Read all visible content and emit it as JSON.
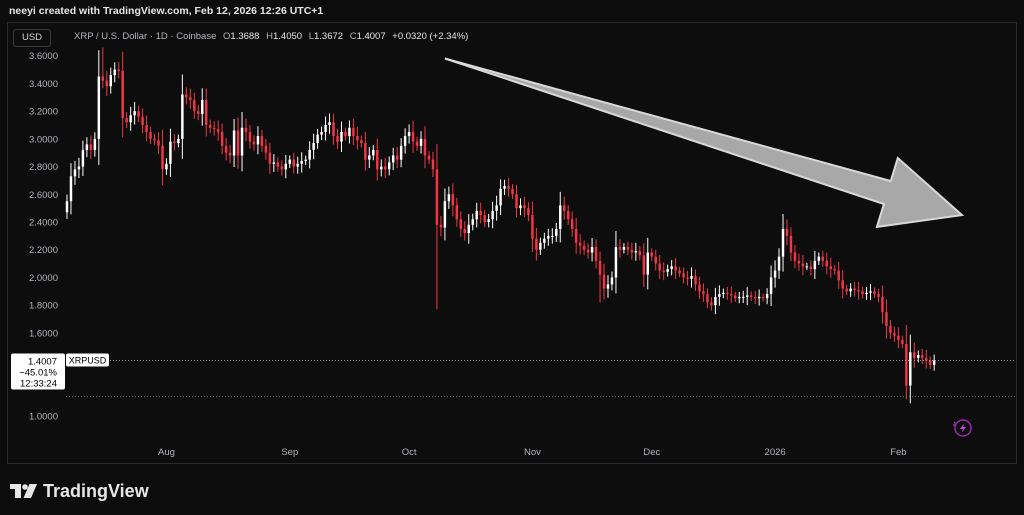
{
  "header": {
    "credit": "neeyi created with TradingView.com, Feb 12, 2026 12:26 UTC+1",
    "currency_button": "USD",
    "symbol": "XRP / U.S. Dollar · 1D · Coinbase",
    "ohlc": {
      "o_label": "O",
      "o": "1.3688",
      "h_label": "H",
      "h": "1.4050",
      "l_label": "L",
      "l": "1.3672",
      "c_label": "C",
      "c": "1.4007",
      "change": "+0.0320 (+2.34%)"
    }
  },
  "price_marker": {
    "price": "1.4007",
    "change_pct": "−45.01%",
    "countdown": "12:33:24",
    "symbol_tag": "XRPUSD"
  },
  "colors": {
    "up": "#ffffff",
    "down": "#f23645",
    "background": "#0d0d0d",
    "arrow": "#b5b5b5",
    "lightning": "#9c27b0"
  },
  "icons": {
    "lightning": "lightning-icon",
    "logo": "tradingview-logo-icon"
  },
  "watermark": "TradingView",
  "chart_data": {
    "type": "candlestick",
    "title": "XRP / U.S. Dollar · 1D · Coinbase",
    "y_ticks": [
      1.0,
      1.6,
      1.8,
      2.0,
      2.2,
      2.4,
      2.6,
      2.8,
      3.0,
      3.2,
      3.4,
      3.6
    ],
    "y_range": [
      0.95,
      3.67
    ],
    "x_ticks": [
      "Aug",
      "Sep",
      "Oct",
      "Nov",
      "Dec",
      "2026",
      "Feb"
    ],
    "x_range": [
      "2025-07-09",
      "2026-02-20"
    ],
    "grid": false,
    "last_price": 1.4007,
    "dotted_level": 1.14,
    "annotation": {
      "type": "arrow",
      "from": [
        "2025-10-12",
        3.58
      ],
      "to": [
        "2026-02-19",
        2.45
      ]
    },
    "closes": [
      {
        "d": "2025-07-09",
        "c": 2.55
      },
      {
        "d": "2025-07-10",
        "c": 2.73
      },
      {
        "d": "2025-07-11",
        "c": 2.78
      },
      {
        "d": "2025-07-12",
        "c": 2.8
      },
      {
        "d": "2025-07-13",
        "c": 2.92
      },
      {
        "d": "2025-07-14",
        "c": 2.96
      },
      {
        "d": "2025-07-15",
        "c": 2.92
      },
      {
        "d": "2025-07-16",
        "c": 3.0
      },
      {
        "d": "2025-07-17",
        "c": 3.45
      },
      {
        "d": "2025-07-18",
        "c": 3.42
      },
      {
        "d": "2025-07-19",
        "c": 3.38
      },
      {
        "d": "2025-07-20",
        "c": 3.46
      },
      {
        "d": "2025-07-21",
        "c": 3.5
      },
      {
        "d": "2025-07-22",
        "c": 3.49
      },
      {
        "d": "2025-07-23",
        "c": 3.15
      },
      {
        "d": "2025-07-24",
        "c": 3.12
      },
      {
        "d": "2025-07-25",
        "c": 3.17
      },
      {
        "d": "2025-07-26",
        "c": 3.2
      },
      {
        "d": "2025-07-27",
        "c": 3.16
      },
      {
        "d": "2025-07-28",
        "c": 3.1
      },
      {
        "d": "2025-07-29",
        "c": 3.05
      },
      {
        "d": "2025-07-30",
        "c": 3.0
      },
      {
        "d": "2025-07-31",
        "c": 2.99
      },
      {
        "d": "2025-08-01",
        "c": 2.95
      },
      {
        "d": "2025-08-02",
        "c": 2.78
      },
      {
        "d": "2025-08-03",
        "c": 2.82
      },
      {
        "d": "2025-08-04",
        "c": 2.98
      },
      {
        "d": "2025-08-05",
        "c": 2.97
      },
      {
        "d": "2025-08-06",
        "c": 3.0
      },
      {
        "d": "2025-08-07",
        "c": 3.32
      },
      {
        "d": "2025-08-08",
        "c": 3.3
      },
      {
        "d": "2025-08-09",
        "c": 3.28
      },
      {
        "d": "2025-08-10",
        "c": 3.2
      },
      {
        "d": "2025-08-11",
        "c": 3.18
      },
      {
        "d": "2025-08-12",
        "c": 3.28
      },
      {
        "d": "2025-08-13",
        "c": 3.1
      },
      {
        "d": "2025-08-14",
        "c": 3.08
      },
      {
        "d": "2025-08-15",
        "c": 3.07
      },
      {
        "d": "2025-08-16",
        "c": 3.05
      },
      {
        "d": "2025-08-17",
        "c": 2.95
      },
      {
        "d": "2025-08-18",
        "c": 2.9
      },
      {
        "d": "2025-08-19",
        "c": 2.88
      },
      {
        "d": "2025-08-20",
        "c": 3.06
      },
      {
        "d": "2025-08-21",
        "c": 2.88
      },
      {
        "d": "2025-08-22",
        "c": 3.08
      },
      {
        "d": "2025-08-23",
        "c": 3.05
      },
      {
        "d": "2025-08-24",
        "c": 2.98
      },
      {
        "d": "2025-08-25",
        "c": 2.96
      },
      {
        "d": "2025-08-26",
        "c": 3.02
      },
      {
        "d": "2025-08-27",
        "c": 2.95
      },
      {
        "d": "2025-08-28",
        "c": 2.9
      },
      {
        "d": "2025-08-29",
        "c": 2.82
      },
      {
        "d": "2025-08-30",
        "c": 2.83
      },
      {
        "d": "2025-08-31",
        "c": 2.8
      },
      {
        "d": "2025-09-01",
        "c": 2.78
      },
      {
        "d": "2025-09-02",
        "c": 2.82
      },
      {
        "d": "2025-09-03",
        "c": 2.85
      },
      {
        "d": "2025-09-04",
        "c": 2.8
      },
      {
        "d": "2025-09-05",
        "c": 2.82
      },
      {
        "d": "2025-09-06",
        "c": 2.84
      },
      {
        "d": "2025-09-07",
        "c": 2.85
      },
      {
        "d": "2025-09-08",
        "c": 2.92
      },
      {
        "d": "2025-09-09",
        "c": 2.97
      },
      {
        "d": "2025-09-10",
        "c": 3.03
      },
      {
        "d": "2025-09-11",
        "c": 3.05
      },
      {
        "d": "2025-09-12",
        "c": 3.1
      },
      {
        "d": "2025-09-13",
        "c": 3.12
      },
      {
        "d": "2025-09-14",
        "c": 3.02
      },
      {
        "d": "2025-09-15",
        "c": 2.98
      },
      {
        "d": "2025-09-16",
        "c": 3.05
      },
      {
        "d": "2025-09-17",
        "c": 3.02
      },
      {
        "d": "2025-09-18",
        "c": 3.08
      },
      {
        "d": "2025-09-19",
        "c": 3.02
      },
      {
        "d": "2025-09-20",
        "c": 2.99
      },
      {
        "d": "2025-09-21",
        "c": 2.97
      },
      {
        "d": "2025-09-22",
        "c": 2.85
      },
      {
        "d": "2025-09-23",
        "c": 2.88
      },
      {
        "d": "2025-09-24",
        "c": 2.92
      },
      {
        "d": "2025-09-25",
        "c": 2.78
      },
      {
        "d": "2025-09-26",
        "c": 2.8
      },
      {
        "d": "2025-09-27",
        "c": 2.78
      },
      {
        "d": "2025-09-28",
        "c": 2.83
      },
      {
        "d": "2025-09-29",
        "c": 2.88
      },
      {
        "d": "2025-09-30",
        "c": 2.85
      },
      {
        "d": "2025-10-01",
        "c": 2.95
      },
      {
        "d": "2025-10-02",
        "c": 3.02
      },
      {
        "d": "2025-10-03",
        "c": 3.05
      },
      {
        "d": "2025-10-04",
        "c": 2.98
      },
      {
        "d": "2025-10-05",
        "c": 2.95
      },
      {
        "d": "2025-10-06",
        "c": 3.0
      },
      {
        "d": "2025-10-07",
        "c": 2.88
      },
      {
        "d": "2025-10-08",
        "c": 2.85
      },
      {
        "d": "2025-10-09",
        "c": 2.78
      },
      {
        "d": "2025-10-10",
        "c": 2.38
      },
      {
        "d": "2025-10-11",
        "c": 2.36
      },
      {
        "d": "2025-10-12",
        "c": 2.55
      },
      {
        "d": "2025-10-13",
        "c": 2.6
      },
      {
        "d": "2025-10-14",
        "c": 2.52
      },
      {
        "d": "2025-10-15",
        "c": 2.42
      },
      {
        "d": "2025-10-16",
        "c": 2.35
      },
      {
        "d": "2025-10-17",
        "c": 2.32
      },
      {
        "d": "2025-10-18",
        "c": 2.38
      },
      {
        "d": "2025-10-19",
        "c": 2.42
      },
      {
        "d": "2025-10-20",
        "c": 2.48
      },
      {
        "d": "2025-10-21",
        "c": 2.45
      },
      {
        "d": "2025-10-22",
        "c": 2.4
      },
      {
        "d": "2025-10-23",
        "c": 2.42
      },
      {
        "d": "2025-10-24",
        "c": 2.48
      },
      {
        "d": "2025-10-25",
        "c": 2.52
      },
      {
        "d": "2025-10-26",
        "c": 2.64
      },
      {
        "d": "2025-10-27",
        "c": 2.66
      },
      {
        "d": "2025-10-28",
        "c": 2.64
      },
      {
        "d": "2025-10-29",
        "c": 2.6
      },
      {
        "d": "2025-10-30",
        "c": 2.5
      },
      {
        "d": "2025-10-31",
        "c": 2.52
      },
      {
        "d": "2025-11-01",
        "c": 2.5
      },
      {
        "d": "2025-11-02",
        "c": 2.45
      },
      {
        "d": "2025-11-03",
        "c": 2.28
      },
      {
        "d": "2025-11-04",
        "c": 2.2
      },
      {
        "d": "2025-11-05",
        "c": 2.25
      },
      {
        "d": "2025-11-06",
        "c": 2.28
      },
      {
        "d": "2025-11-07",
        "c": 2.3
      },
      {
        "d": "2025-11-08",
        "c": 2.3
      },
      {
        "d": "2025-11-09",
        "c": 2.35
      },
      {
        "d": "2025-11-10",
        "c": 2.52
      },
      {
        "d": "2025-11-11",
        "c": 2.48
      },
      {
        "d": "2025-11-12",
        "c": 2.42
      },
      {
        "d": "2025-11-13",
        "c": 2.35
      },
      {
        "d": "2025-11-14",
        "c": 2.25
      },
      {
        "d": "2025-11-15",
        "c": 2.23
      },
      {
        "d": "2025-11-16",
        "c": 2.2
      },
      {
        "d": "2025-11-17",
        "c": 2.18
      },
      {
        "d": "2025-11-18",
        "c": 2.22
      },
      {
        "d": "2025-11-19",
        "c": 2.12
      },
      {
        "d": "2025-11-20",
        "c": 2.02
      },
      {
        "d": "2025-11-21",
        "c": 1.92
      },
      {
        "d": "2025-11-22",
        "c": 1.95
      },
      {
        "d": "2025-11-23",
        "c": 2.0
      },
      {
        "d": "2025-11-24",
        "c": 2.22
      },
      {
        "d": "2025-11-25",
        "c": 2.2
      },
      {
        "d": "2025-11-26",
        "c": 2.22
      },
      {
        "d": "2025-11-27",
        "c": 2.2
      },
      {
        "d": "2025-11-28",
        "c": 2.18
      },
      {
        "d": "2025-11-29",
        "c": 2.19
      },
      {
        "d": "2025-11-30",
        "c": 2.16
      },
      {
        "d": "2025-12-01",
        "c": 2.02
      },
      {
        "d": "2025-12-02",
        "c": 2.18
      },
      {
        "d": "2025-12-03",
        "c": 2.15
      },
      {
        "d": "2025-12-04",
        "c": 2.1
      },
      {
        "d": "2025-12-05",
        "c": 2.05
      },
      {
        "d": "2025-12-06",
        "c": 2.04
      },
      {
        "d": "2025-12-07",
        "c": 2.06
      },
      {
        "d": "2025-12-08",
        "c": 2.08
      },
      {
        "d": "2025-12-09",
        "c": 2.05
      },
      {
        "d": "2025-12-10",
        "c": 2.03
      },
      {
        "d": "2025-12-11",
        "c": 2.0
      },
      {
        "d": "2025-12-12",
        "c": 1.99
      },
      {
        "d": "2025-12-13",
        "c": 2.01
      },
      {
        "d": "2025-12-14",
        "c": 1.95
      },
      {
        "d": "2025-12-15",
        "c": 1.9
      },
      {
        "d": "2025-12-16",
        "c": 1.88
      },
      {
        "d": "2025-12-17",
        "c": 1.82
      },
      {
        "d": "2025-12-18",
        "c": 1.8
      },
      {
        "d": "2025-12-19",
        "c": 1.86
      },
      {
        "d": "2025-12-20",
        "c": 1.88
      },
      {
        "d": "2025-12-21",
        "c": 1.89
      },
      {
        "d": "2025-12-22",
        "c": 1.88
      },
      {
        "d": "2025-12-23",
        "c": 1.87
      },
      {
        "d": "2025-12-24",
        "c": 1.85
      },
      {
        "d": "2025-12-25",
        "c": 1.86
      },
      {
        "d": "2025-12-26",
        "c": 1.86
      },
      {
        "d": "2025-12-27",
        "c": 1.87
      },
      {
        "d": "2025-12-28",
        "c": 1.86
      },
      {
        "d": "2025-12-29",
        "c": 1.85
      },
      {
        "d": "2025-12-30",
        "c": 1.86
      },
      {
        "d": "2025-12-31",
        "c": 1.85
      },
      {
        "d": "2026-01-01",
        "c": 1.88
      },
      {
        "d": "2026-01-02",
        "c": 2.0
      },
      {
        "d": "2026-01-03",
        "c": 2.05
      },
      {
        "d": "2026-01-04",
        "c": 2.15
      },
      {
        "d": "2026-01-05",
        "c": 2.35
      },
      {
        "d": "2026-01-06",
        "c": 2.3
      },
      {
        "d": "2026-01-07",
        "c": 2.18
      },
      {
        "d": "2026-01-08",
        "c": 2.12
      },
      {
        "d": "2026-01-09",
        "c": 2.1
      },
      {
        "d": "2026-01-10",
        "c": 2.08
      },
      {
        "d": "2026-01-11",
        "c": 2.08
      },
      {
        "d": "2026-01-12",
        "c": 2.06
      },
      {
        "d": "2026-01-13",
        "c": 2.12
      },
      {
        "d": "2026-01-14",
        "c": 2.15
      },
      {
        "d": "2026-01-15",
        "c": 2.12
      },
      {
        "d": "2026-01-16",
        "c": 2.08
      },
      {
        "d": "2026-01-17",
        "c": 2.06
      },
      {
        "d": "2026-01-18",
        "c": 2.05
      },
      {
        "d": "2026-01-19",
        "c": 1.98
      },
      {
        "d": "2026-01-20",
        "c": 1.92
      },
      {
        "d": "2026-01-21",
        "c": 1.9
      },
      {
        "d": "2026-01-22",
        "c": 1.92
      },
      {
        "d": "2026-01-23",
        "c": 1.91
      },
      {
        "d": "2026-01-24",
        "c": 1.9
      },
      {
        "d": "2026-01-25",
        "c": 1.88
      },
      {
        "d": "2026-01-26",
        "c": 1.89
      },
      {
        "d": "2026-01-27",
        "c": 1.9
      },
      {
        "d": "2026-01-28",
        "c": 1.88
      },
      {
        "d": "2026-01-29",
        "c": 1.86
      },
      {
        "d": "2026-01-30",
        "c": 1.75
      },
      {
        "d": "2026-01-31",
        "c": 1.65
      },
      {
        "d": "2026-02-01",
        "c": 1.6
      },
      {
        "d": "2026-02-02",
        "c": 1.58
      },
      {
        "d": "2026-02-03",
        "c": 1.55
      },
      {
        "d": "2026-02-04",
        "c": 1.52
      },
      {
        "d": "2026-02-05",
        "c": 1.22
      },
      {
        "d": "2026-02-06",
        "c": 1.46
      },
      {
        "d": "2026-02-07",
        "c": 1.42
      },
      {
        "d": "2026-02-08",
        "c": 1.44
      },
      {
        "d": "2026-02-09",
        "c": 1.42
      },
      {
        "d": "2026-02-10",
        "c": 1.4
      },
      {
        "d": "2026-02-11",
        "c": 1.37
      },
      {
        "d": "2026-02-12",
        "c": 1.4007
      }
    ]
  }
}
